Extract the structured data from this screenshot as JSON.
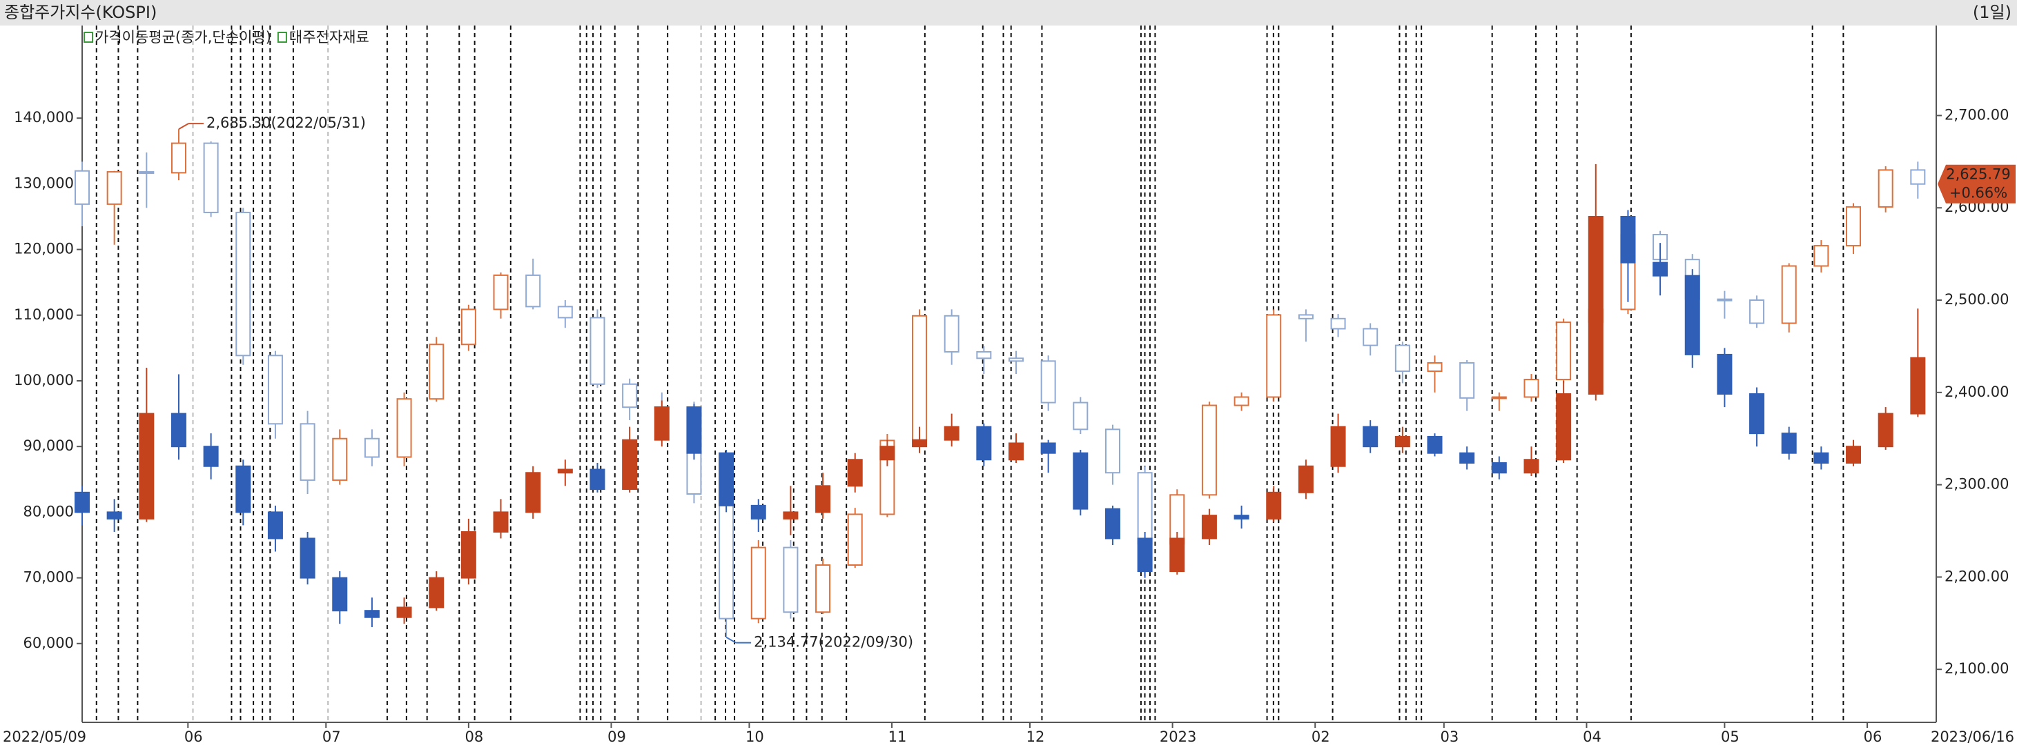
{
  "chart_data": {
    "type": "candlestick",
    "title": "종합주가지수(KOSPI)",
    "period_label": "(1일)",
    "overlay_label": "가격이동평균(종가,단순이평)",
    "xlim": [
      "2022/05/09",
      "2023/06/16"
    ],
    "xticks": [
      {
        "value": "2022/06/01",
        "label": "06"
      },
      {
        "value": "2022/07/01",
        "label": "07"
      },
      {
        "value": "2022/08/01",
        "label": "08"
      },
      {
        "value": "2022/09/01",
        "label": "09"
      },
      {
        "value": "2022/10/01",
        "label": "10"
      },
      {
        "value": "2022/11/01",
        "label": "11"
      },
      {
        "value": "2022/12/01",
        "label": "12"
      },
      {
        "value": "2023/01/01",
        "label": "2023"
      },
      {
        "value": "2023/02/01",
        "label": "02"
      },
      {
        "value": "2023/03/01",
        "label": "03"
      },
      {
        "value": "2023/04/01",
        "label": "04"
      },
      {
        "value": "2023/05/01",
        "label": "05"
      },
      {
        "value": "2023/06/01",
        "label": "06"
      }
    ],
    "ylim": [
      48000,
      154100
    ],
    "yticks": [
      {
        "value": 60000,
        "label": "60,000"
      },
      {
        "value": 70000,
        "label": "70,000"
      },
      {
        "value": 80000,
        "label": "80,000"
      },
      {
        "value": 90000,
        "label": "90,000"
      },
      {
        "value": 100000,
        "label": "100,000"
      },
      {
        "value": 110000,
        "label": "110,000"
      },
      {
        "value": 120000,
        "label": "120,000"
      },
      {
        "value": 130000,
        "label": "130,000"
      },
      {
        "value": 140000,
        "label": "140,000"
      }
    ],
    "y2lim": [
      2042.6,
      2797.5
    ],
    "y2ticks": [
      {
        "value": 2100,
        "label": "2,100.00"
      },
      {
        "value": 2200,
        "label": "2,200.00"
      },
      {
        "value": 2300,
        "label": "2,300.00"
      },
      {
        "value": 2400,
        "label": "2,400.00"
      },
      {
        "value": 2500,
        "label": "2,500.00"
      },
      {
        "value": 2600,
        "label": "2,600.00"
      },
      {
        "value": 2700,
        "label": "2,700.00"
      }
    ],
    "x": [
      "2022/05/09",
      "2022/05/16",
      "2022/05/23",
      "2022/05/30",
      "2022/06/06",
      "2022/06/13",
      "2022/06/20",
      "2022/06/27",
      "2022/07/04",
      "2022/07/11",
      "2022/07/18",
      "2022/07/25",
      "2022/08/01",
      "2022/08/08",
      "2022/08/15",
      "2022/08/22",
      "2022/08/29",
      "2022/09/05",
      "2022/09/12",
      "2022/09/19",
      "2022/09/26",
      "2022/10/03",
      "2022/10/10",
      "2022/10/17",
      "2022/10/24",
      "2022/10/31",
      "2022/11/07",
      "2022/11/14",
      "2022/11/21",
      "2022/11/28",
      "2022/12/05",
      "2022/12/12",
      "2022/12/19",
      "2022/12/26",
      "2023/01/02",
      "2023/01/09",
      "2023/01/16",
      "2023/01/23",
      "2023/01/30",
      "2023/02/06",
      "2023/02/13",
      "2023/02/20",
      "2023/02/27",
      "2023/03/06",
      "2023/03/13",
      "2023/03/20",
      "2023/03/27",
      "2023/04/03",
      "2023/04/10",
      "2023/04/17",
      "2023/04/24",
      "2023/05/01",
      "2023/05/08",
      "2023/05/15",
      "2023/05/22",
      "2023/05/29",
      "2023/06/05",
      "2023/06/12"
    ],
    "series": [
      {
        "axis": "y2",
        "filled": false,
        "up_color": "#e0703a",
        "down_color": "#8fa9d2",
        "open": [
          2640,
          2604,
          2639,
          2638,
          2670,
          2595,
          2440,
          2366,
          2305,
          2350,
          2330,
          2393,
          2452,
          2490,
          2527,
          2493,
          2481,
          2409,
          2384,
          2382,
          2290,
          2155,
          2232,
          2162,
          2213,
          2268,
          2348,
          2483,
          2444,
          2437,
          2434,
          2389,
          2360,
          2313,
          2236,
          2289,
          2386,
          2395,
          2484,
          2480,
          2469,
          2451,
          2423,
          2432,
          2394,
          2395,
          2414,
          2476,
          2490,
          2571,
          2544,
          2501,
          2500,
          2475,
          2537,
          2559,
          2601,
          2641
        ],
        "high": [
          2650,
          2640,
          2660,
          2685.3,
          2672,
          2600,
          2445,
          2380,
          2360,
          2360,
          2400,
          2460,
          2495,
          2530,
          2545,
          2500,
          2490,
          2415,
          2400,
          2390,
          2295,
          2240,
          2240,
          2220,
          2275,
          2355,
          2490,
          2490,
          2450,
          2445,
          2440,
          2395,
          2365,
          2320,
          2295,
          2390,
          2400,
          2490,
          2490,
          2485,
          2475,
          2455,
          2440,
          2435,
          2400,
          2420,
          2480,
          2500,
          2580,
          2575,
          2550,
          2510,
          2505,
          2540,
          2565,
          2605,
          2645,
          2650
        ],
        "low": [
          2580,
          2560,
          2600,
          2630,
          2590,
          2430,
          2350,
          2290,
          2300,
          2320,
          2320,
          2390,
          2445,
          2480,
          2490,
          2470,
          2405,
          2370,
          2360,
          2280,
          2134.77,
          2150,
          2155,
          2160,
          2210,
          2265,
          2345,
          2430,
          2420,
          2420,
          2380,
          2355,
          2300,
          2220,
          2225,
          2285,
          2380,
          2390,
          2455,
          2460,
          2440,
          2410,
          2400,
          2380,
          2380,
          2390,
          2410,
          2470,
          2485,
          2530,
          2490,
          2480,
          2470,
          2465,
          2530,
          2550,
          2595,
          2610
        ],
        "close": [
          2604,
          2639,
          2638,
          2670,
          2595,
          2440,
          2366,
          2305,
          2350,
          2330,
          2393,
          2452,
          2490,
          2527,
          2493,
          2481,
          2409,
          2384,
          2382,
          2290,
          2155,
          2232,
          2162,
          2213,
          2268,
          2348,
          2483,
          2444,
          2437,
          2434,
          2389,
          2360,
          2313,
          2236,
          2289,
          2386,
          2395,
          2484,
          2480,
          2469,
          2451,
          2423,
          2432,
          2394,
          2395,
          2414,
          2476,
          2490,
          2571,
          2544,
          2501,
          2500,
          2475,
          2537,
          2559,
          2601,
          2641,
          2625.79
        ]
      },
      {
        "name": "대주전자재료",
        "axis": "y",
        "filled": true,
        "up_color": "#c4431c",
        "down_color": "#2f5fb6",
        "open": [
          83000,
          80000,
          79000,
          95000,
          90000,
          87000,
          80000,
          76000,
          70000,
          65000,
          64000,
          65500,
          70000,
          77000,
          80000,
          86000,
          86500,
          83500,
          91000,
          96000,
          89000,
          81000,
          79000,
          80000,
          84000,
          88000,
          90000,
          91000,
          93000,
          88000,
          90500,
          89000,
          80500,
          76000,
          71000,
          76000,
          79500,
          79000,
          83000,
          87000,
          93000,
          90000,
          91500,
          89000,
          87500,
          86000,
          88000,
          98000,
          125000,
          118000,
          116000,
          104000,
          98000,
          92000,
          89000,
          87500,
          90000,
          95000
        ],
        "high": [
          84000,
          82000,
          102000,
          101000,
          92000,
          88000,
          81000,
          77000,
          71000,
          67000,
          67000,
          71000,
          79000,
          82000,
          87000,
          88000,
          87500,
          93000,
          97000,
          96500,
          89500,
          82000,
          84000,
          86000,
          89000,
          91000,
          93000,
          95000,
          93500,
          92000,
          91000,
          89500,
          81000,
          77000,
          77000,
          80500,
          81000,
          84000,
          88000,
          95000,
          94000,
          93000,
          92000,
          90000,
          88500,
          90000,
          100000,
          133000,
          126000,
          121000,
          117000,
          105000,
          99000,
          93000,
          90000,
          91000,
          96000,
          111000
        ],
        "low": [
          78000,
          77000,
          78500,
          88000,
          85000,
          78000,
          74000,
          69000,
          63000,
          62500,
          63000,
          65000,
          69000,
          76000,
          79000,
          84000,
          83000,
          83000,
          90000,
          88000,
          80000,
          77000,
          76500,
          79000,
          83000,
          87000,
          89000,
          90000,
          87000,
          87500,
          86000,
          79500,
          75000,
          70000,
          70500,
          75000,
          77500,
          78500,
          82000,
          86000,
          89000,
          89000,
          88500,
          86500,
          85000,
          85500,
          87500,
          97000,
          112000,
          113000,
          102000,
          96000,
          90000,
          88000,
          86500,
          87000,
          89500,
          94500
        ],
        "close": [
          80000,
          79000,
          95000,
          90000,
          87000,
          80000,
          76000,
          70000,
          65000,
          64000,
          65500,
          70000,
          77000,
          80000,
          86000,
          86500,
          83500,
          91000,
          96000,
          89000,
          81000,
          79000,
          80000,
          84000,
          88000,
          90000,
          91000,
          93000,
          88000,
          90500,
          89000,
          80500,
          76000,
          71000,
          76000,
          79500,
          79000,
          83000,
          87000,
          93000,
          90000,
          91500,
          89000,
          87500,
          86000,
          88000,
          98000,
          125000,
          118000,
          116000,
          104000,
          98000,
          92000,
          89000,
          87500,
          90000,
          95000,
          103500
        ]
      }
    ],
    "annotations": [
      {
        "x": "2022/05/30",
        "value": 2685.3,
        "label": "2,685.30(2022/05/31)",
        "color": "#d0502a"
      },
      {
        "x": "2022/09/26",
        "value": 2134.77,
        "label": "2,134.77(2022/09/30)",
        "color": "#3a6fc4"
      }
    ],
    "current": {
      "value": 2625.79,
      "label": "2,625.79",
      "change": 0.66,
      "change_label": "+0.66%",
      "color": "#d0502a"
    }
  }
}
